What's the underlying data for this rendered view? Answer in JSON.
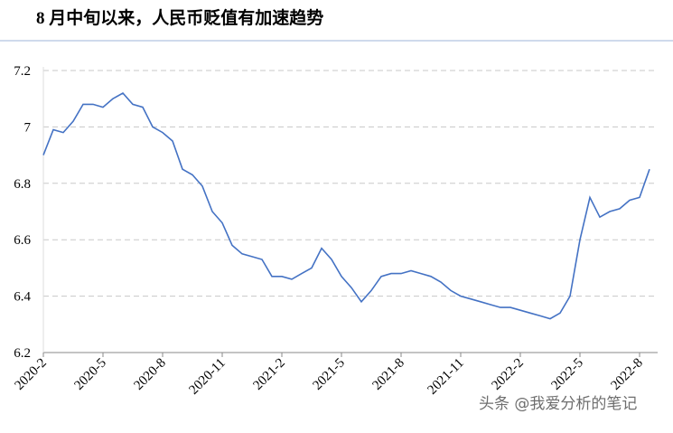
{
  "chart_data": {
    "type": "line",
    "title": "8 月中旬以来，人民币贬值有加速趋势",
    "watermark": "头条 @我爱分析的笔记",
    "categories": [
      "2020-2",
      null,
      null,
      null,
      null,
      null,
      "2020-5",
      null,
      null,
      null,
      null,
      null,
      "2020-8",
      null,
      null,
      null,
      null,
      null,
      "2020-11",
      null,
      null,
      null,
      null,
      null,
      "2021-2",
      null,
      null,
      null,
      null,
      null,
      "2021-5",
      null,
      null,
      null,
      null,
      null,
      "2021-8",
      null,
      null,
      null,
      null,
      null,
      "2021-11",
      null,
      null,
      null,
      null,
      null,
      "2022-2",
      null,
      null,
      null,
      null,
      null,
      "2022-5",
      null,
      null,
      null,
      null,
      null,
      "2022-8",
      null
    ],
    "series": [
      {
        "color": "#4472c4",
        "values": [
          6.9,
          6.99,
          6.98,
          7.02,
          7.08,
          7.08,
          7.07,
          7.1,
          7.12,
          7.08,
          7.07,
          7.0,
          6.98,
          6.95,
          6.85,
          6.83,
          6.79,
          6.7,
          6.66,
          6.58,
          6.55,
          6.54,
          6.53,
          6.47,
          6.47,
          6.46,
          6.48,
          6.5,
          6.57,
          6.53,
          6.47,
          6.43,
          6.38,
          6.42,
          6.47,
          6.48,
          6.48,
          6.49,
          6.48,
          6.47,
          6.45,
          6.42,
          6.4,
          6.39,
          6.38,
          6.37,
          6.36,
          6.36,
          6.35,
          6.34,
          6.33,
          6.32,
          6.34,
          6.4,
          6.6,
          6.75,
          6.68,
          6.7,
          6.71,
          6.74,
          6.75,
          6.85
        ]
      }
    ],
    "ylim": [
      6.2,
      7.2
    ],
    "yticks": [
      6.2,
      6.4,
      6.6,
      6.8,
      7,
      7.2
    ],
    "grid": true
  }
}
